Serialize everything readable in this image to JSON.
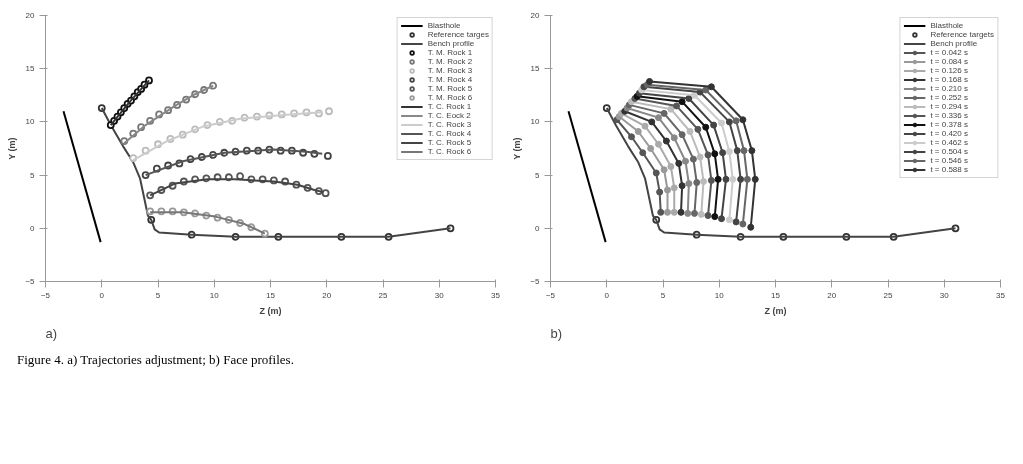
{
  "chart_data": [
    {
      "type": "line",
      "title": "a)",
      "xlabel": "Z (m)",
      "ylabel": "Y (m)",
      "xlim": [
        -5,
        35
      ],
      "ylim": [
        -5,
        20
      ],
      "xticks": [
        -5,
        0,
        5,
        10,
        15,
        20,
        25,
        30,
        35
      ],
      "yticks": [
        -5,
        0,
        5,
        10,
        15,
        20
      ],
      "legend": "top right",
      "annotations": [
        "Figure 4. a) Trajectories adjustment; b) Face profiles."
      ],
      "series": [
        {
          "name": "Blasthole",
          "color": "#000000",
          "x": [
            -3.4,
            -0.1
          ],
          "values": [
            11.0,
            -1.3
          ]
        },
        {
          "name": "Reference targes",
          "type": "scatter",
          "marker": "circle",
          "color": "#333333",
          "x": [
            0,
            4.4,
            8.0,
            11.9,
            15.7,
            21.3,
            25.5,
            31.0
          ],
          "values": [
            11.3,
            0.8,
            -0.6,
            -0.8,
            -0.8,
            -0.8,
            -0.8,
            0.0
          ]
        },
        {
          "name": "Bench profile",
          "color": "#444444",
          "x": [
            0,
            0.8,
            1.9,
            2.8,
            3.4,
            3.8,
            4.1,
            4.4,
            4.7,
            5.1,
            8.0,
            11.9,
            25.5,
            31.0
          ],
          "values": [
            11.3,
            9.7,
            7.7,
            6.2,
            4.7,
            2.7,
            1.2,
            0.8,
            -0.1,
            -0.4,
            -0.6,
            -0.8,
            -0.8,
            0.0
          ]
        },
        {
          "name": "T. M. Rock 1",
          "type": "scatter",
          "marker": "circle",
          "color": "#111111",
          "x": [
            0.8,
            1.1,
            1.4,
            1.7,
            2.0,
            2.3,
            2.6,
            2.9,
            3.2,
            3.5,
            3.8,
            4.2
          ],
          "values": [
            9.7,
            10.1,
            10.5,
            10.9,
            11.3,
            11.7,
            12.0,
            12.4,
            12.8,
            13.1,
            13.5,
            13.9
          ]
        },
        {
          "name": "T. M. Rock 2",
          "type": "scatter",
          "marker": "circle",
          "color": "#777777",
          "x": [
            2.0,
            2.8,
            3.5,
            4.3,
            5.1,
            5.9,
            6.7,
            7.5,
            8.3,
            9.1,
            9.9
          ],
          "values": [
            8.2,
            8.9,
            9.5,
            10.1,
            10.7,
            11.1,
            11.6,
            12.1,
            12.6,
            13.0,
            13.4
          ]
        },
        {
          "name": "T. M. Rock 3",
          "type": "scatter",
          "marker": "circle",
          "color": "#bbbbbb",
          "x": [
            2.8,
            3.9,
            5.0,
            6.1,
            7.2,
            8.3,
            9.4,
            10.5,
            11.6,
            12.7,
            13.8,
            14.9,
            16.0,
            17.1,
            18.2,
            19.3,
            20.2
          ],
          "values": [
            6.6,
            7.3,
            7.9,
            8.4,
            8.8,
            9.3,
            9.7,
            10.0,
            10.1,
            10.4,
            10.5,
            10.6,
            10.7,
            10.8,
            10.9,
            10.8,
            11.0
          ]
        },
        {
          "name": "T. M. Rock 4",
          "type": "scatter",
          "marker": "circle",
          "color": "#444444",
          "x": [
            3.9,
            4.9,
            5.9,
            6.9,
            7.9,
            8.9,
            9.9,
            10.9,
            11.9,
            12.9,
            13.9,
            14.9,
            15.9,
            16.9,
            17.9,
            18.9,
            20.1
          ],
          "values": [
            5.0,
            5.6,
            5.9,
            6.1,
            6.5,
            6.7,
            6.9,
            7.1,
            7.2,
            7.3,
            7.3,
            7.4,
            7.3,
            7.3,
            7.1,
            7.0,
            6.8
          ]
        },
        {
          "name": "T. M. Rock 5",
          "type": "scatter",
          "marker": "circle",
          "color": "#555555",
          "x": [
            4.3,
            5.3,
            6.3,
            7.3,
            8.3,
            9.3,
            10.3,
            11.3,
            12.3,
            13.3,
            14.3,
            15.3,
            16.3,
            17.3,
            18.3,
            19.3,
            19.9
          ],
          "values": [
            3.1,
            3.6,
            4.0,
            4.4,
            4.6,
            4.7,
            4.8,
            4.8,
            4.9,
            4.6,
            4.6,
            4.5,
            4.4,
            4.1,
            3.8,
            3.5,
            3.3
          ]
        },
        {
          "name": "T. M. Rock 6",
          "type": "scatter",
          "marker": "circle",
          "color": "#999999",
          "x": [
            4.3,
            5.3,
            6.3,
            7.3,
            8.3,
            9.3,
            10.3,
            11.3,
            12.3,
            13.3,
            14.5
          ],
          "values": [
            1.6,
            1.6,
            1.6,
            1.5,
            1.4,
            1.2,
            1.0,
            0.8,
            0.5,
            0.1,
            -0.5
          ]
        },
        {
          "name": "T. C. Rock 1",
          "color": "#333333",
          "x": [
            0.8,
            2.5,
            4.2
          ],
          "values": [
            9.7,
            11.9,
            13.9
          ]
        },
        {
          "name": "T. C. Eock 2",
          "color": "#888888",
          "x": [
            2.0,
            3.9,
            6.5,
            8.3,
            9.9
          ],
          "values": [
            8.0,
            9.7,
            11.5,
            12.6,
            13.4
          ]
        },
        {
          "name": "T. C. Rock 3",
          "color": "#cccccc",
          "x": [
            2.8,
            5.8,
            9.1,
            12.3,
            16.7,
            19.6
          ],
          "values": [
            6.4,
            8.2,
            9.6,
            10.3,
            10.7,
            10.9
          ]
        },
        {
          "name": "T. C. Rock 4",
          "color": "#555555",
          "x": [
            3.9,
            7.2,
            10.9,
            15.3,
            18.2,
            19.6
          ],
          "values": [
            5.0,
            6.3,
            7.1,
            7.4,
            7.2,
            7.0
          ]
        },
        {
          "name": "T. C. Rock 5",
          "color": "#444444",
          "x": [
            4.3,
            6.5,
            9.4,
            11.8,
            15.3,
            17.4,
            18.9,
            19.7
          ],
          "values": [
            3.1,
            4.2,
            4.6,
            4.6,
            4.4,
            4.1,
            3.6,
            3.4
          ]
        },
        {
          "name": "T. C. Rock 6",
          "color": "#777777",
          "x": [
            4.3,
            7.2,
            10.1,
            12.7,
            14.5
          ],
          "values": [
            1.5,
            1.5,
            1.1,
            0.4,
            -0.5
          ]
        }
      ]
    },
    {
      "type": "line",
      "title": "b)",
      "xlabel": "Z (m)",
      "ylabel": "Y (m)",
      "xlim": [
        -5,
        35
      ],
      "ylim": [
        -5,
        20
      ],
      "xticks": [
        -5,
        0,
        5,
        10,
        15,
        20,
        25,
        30,
        35
      ],
      "yticks": [
        -5,
        0,
        5,
        10,
        15,
        20
      ],
      "legend": "top right",
      "series": [
        {
          "name": "Blasthole",
          "color": "#000000",
          "x": [
            -3.4,
            -0.1
          ],
          "values": [
            11.0,
            -1.3
          ]
        },
        {
          "name": "Reference targets",
          "type": "scatter",
          "marker": "circle",
          "color": "#333333",
          "x": [
            0,
            4.4,
            8.0,
            11.9,
            15.7,
            21.3,
            25.5,
            31.0
          ],
          "values": [
            11.3,
            0.8,
            -0.6,
            -0.8,
            -0.8,
            -0.8,
            -0.8,
            0.0
          ]
        },
        {
          "name": "Bench profile",
          "color": "#444444",
          "x": [
            0,
            0.8,
            1.9,
            2.8,
            3.4,
            3.8,
            4.1,
            4.4,
            4.7,
            5.1,
            8.0,
            11.9,
            25.5,
            31.0
          ],
          "values": [
            11.3,
            9.7,
            7.7,
            6.2,
            4.7,
            2.7,
            1.2,
            0.8,
            -0.1,
            -0.4,
            -0.6,
            -0.8,
            -0.8,
            0.0
          ]
        },
        {
          "name": "t = 0.042 s",
          "marker": "circle",
          "color": "#555555",
          "x": [
            4.8,
            4.7,
            4.4,
            3.2,
            2.2,
            0.9
          ],
          "values": [
            1.5,
            3.4,
            5.2,
            7.1,
            8.6,
            10.2
          ]
        },
        {
          "name": "t = 0.084 s",
          "marker": "circle",
          "color": "#999999",
          "x": [
            5.4,
            5.4,
            5.1,
            3.9,
            2.8,
            1.1
          ],
          "values": [
            1.5,
            3.6,
            5.5,
            7.5,
            9.1,
            10.5
          ]
        },
        {
          "name": "t = 0.126 s",
          "marker": "circle",
          "color": "#aaaaaa",
          "x": [
            6.0,
            6.0,
            5.7,
            4.6,
            3.4,
            1.3
          ],
          "values": [
            1.5,
            3.8,
            5.8,
            7.9,
            9.6,
            10.8
          ]
        },
        {
          "name": "t = 0.168 s",
          "marker": "circle",
          "color": "#333333",
          "x": [
            6.6,
            6.7,
            6.4,
            5.3,
            4.0,
            1.6
          ],
          "values": [
            1.5,
            4.0,
            6.1,
            8.2,
            10.0,
            11.0
          ]
        },
        {
          "name": "t = 0.210 s",
          "marker": "circle",
          "color": "#888888",
          "x": [
            7.2,
            7.3,
            7.0,
            6.0,
            4.6,
            1.8
          ],
          "values": [
            1.4,
            4.2,
            6.3,
            8.5,
            10.4,
            11.3
          ]
        },
        {
          "name": "t = 0.252 s",
          "marker": "circle",
          "color": "#666666",
          "x": [
            7.8,
            8.0,
            7.7,
            6.7,
            5.1,
            2.0
          ],
          "values": [
            1.4,
            4.3,
            6.5,
            8.8,
            10.8,
            11.6
          ]
        },
        {
          "name": "t = 0.294 s",
          "marker": "circle",
          "color": "#bbbbbb",
          "x": [
            8.4,
            8.6,
            8.3,
            7.4,
            5.7,
            2.2
          ],
          "values": [
            1.3,
            4.4,
            6.7,
            9.1,
            11.2,
            11.9
          ]
        },
        {
          "name": "t = 0.336 s",
          "marker": "circle",
          "color": "#555555",
          "x": [
            9.0,
            9.3,
            9.0,
            8.1,
            6.2,
            2.5
          ],
          "values": [
            1.2,
            4.5,
            6.9,
            9.3,
            11.5,
            12.2
          ]
        },
        {
          "name": "t = 0.378 s",
          "marker": "circle",
          "color": "#111111",
          "x": [
            9.6,
            9.9,
            9.6,
            8.8,
            6.7,
            2.7
          ],
          "values": [
            1.1,
            4.6,
            7.0,
            9.5,
            11.9,
            12.4
          ]
        },
        {
          "name": "t = 0.420 s",
          "marker": "circle",
          "color": "#444444",
          "x": [
            10.2,
            10.6,
            10.3,
            9.5,
            7.3,
            2.9
          ],
          "values": [
            0.9,
            4.6,
            7.1,
            9.7,
            12.2,
            12.7
          ]
        },
        {
          "name": "t = 0.462 s",
          "marker": "circle",
          "color": "#cccccc",
          "x": [
            10.9,
            11.2,
            10.9,
            10.2,
            7.8,
            3.1
          ],
          "values": [
            0.8,
            4.6,
            7.2,
            9.9,
            12.5,
            13.0
          ]
        },
        {
          "name": "t = 0.504 s",
          "marker": "circle",
          "color": "#444444",
          "x": [
            11.5,
            11.9,
            11.6,
            10.9,
            8.3,
            3.3
          ],
          "values": [
            0.6,
            4.6,
            7.3,
            10.0,
            12.8,
            13.3
          ]
        },
        {
          "name": "t = 0.546 s",
          "marker": "circle",
          "color": "#666666",
          "x": [
            12.1,
            12.5,
            12.2,
            11.5,
            8.8,
            3.6
          ],
          "values": [
            0.4,
            4.6,
            7.3,
            10.1,
            13.0,
            13.5
          ]
        },
        {
          "name": "t = 0.588 s",
          "marker": "circle",
          "color": "#333333",
          "x": [
            12.8,
            13.2,
            12.9,
            12.1,
            9.3,
            3.8
          ],
          "values": [
            0.1,
            4.6,
            7.3,
            10.2,
            13.3,
            13.8
          ]
        }
      ]
    }
  ]
}
